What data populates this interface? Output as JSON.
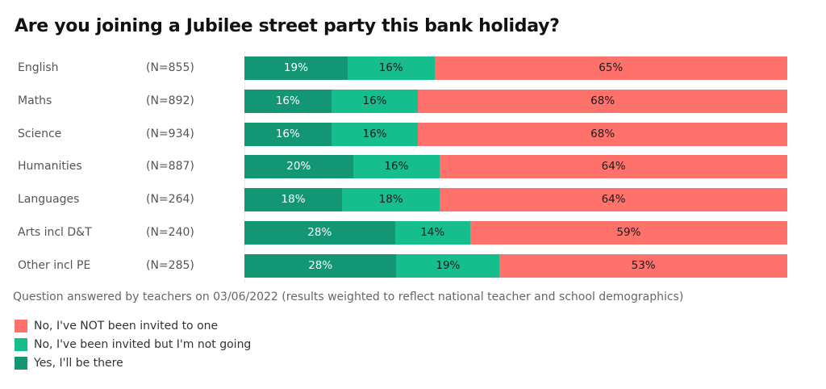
{
  "title": "Are you joining a Jubilee street party this bank holiday?",
  "note": "Question answered by  teachers on 03/06/2022 (results weighted to reflect national teacher and school demographics)",
  "colors": {
    "yes": "#129673",
    "invited_not_going": "#16BE8E",
    "not_invited": "#FF716B"
  },
  "legend": [
    {
      "label": "No, I've NOT been invited to one",
      "color": "#FF716B"
    },
    {
      "label": "No, I've been invited but I'm not going",
      "color": "#16BE8E"
    },
    {
      "label": "Yes, I'll be there",
      "color": "#129673"
    }
  ],
  "rows": [
    {
      "category": "English",
      "n": "(N=855)",
      "yes": "19%",
      "invited": "16%",
      "not": "65%"
    },
    {
      "category": "Maths",
      "n": "(N=892)",
      "yes": "16%",
      "invited": "16%",
      "not": "68%"
    },
    {
      "category": "Science",
      "n": "(N=934)",
      "yes": "16%",
      "invited": "16%",
      "not": "68%"
    },
    {
      "category": "Humanities",
      "n": "(N=887)",
      "yes": "20%",
      "invited": "16%",
      "not": "64%"
    },
    {
      "category": "Languages",
      "n": "(N=264)",
      "yes": "18%",
      "invited": "18%",
      "not": "64%"
    },
    {
      "category": "Arts incl D&T",
      "n": "(N=240)",
      "yes": "28%",
      "invited": "14%",
      "not": "59%"
    },
    {
      "category": "Other incl PE",
      "n": "(N=285)",
      "yes": "28%",
      "invited": "19%",
      "not": "53%"
    }
  ],
  "chart_data": {
    "type": "bar",
    "orientation": "horizontal",
    "stacked": true,
    "title": "Are you joining a Jubilee street party this bank holiday?",
    "xlabel": "",
    "ylabel": "",
    "xlim": [
      0,
      100
    ],
    "grid": false,
    "legend_position": "bottom-left",
    "categories": [
      "English",
      "Maths",
      "Science",
      "Humanities",
      "Languages",
      "Arts incl D&T",
      "Other incl PE"
    ],
    "sample_sizes": [
      855,
      892,
      934,
      887,
      264,
      240,
      285
    ],
    "series": [
      {
        "name": "Yes, I'll be there",
        "color": "#129673",
        "values": [
          19,
          16,
          16,
          20,
          18,
          28,
          28
        ]
      },
      {
        "name": "No, I've been invited but I'm not going",
        "color": "#16BE8E",
        "values": [
          16,
          16,
          16,
          16,
          18,
          14,
          19
        ]
      },
      {
        "name": "No, I've NOT been invited to one",
        "color": "#FF716B",
        "values": [
          65,
          68,
          68,
          64,
          64,
          59,
          53
        ]
      }
    ],
    "annotations": [
      "Question answered by  teachers on 03/06/2022 (results weighted to reflect national teacher and school demographics)"
    ]
  }
}
